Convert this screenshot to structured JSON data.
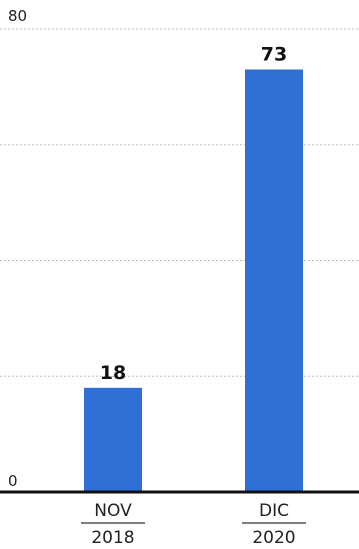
{
  "chart_data": {
    "type": "bar",
    "categories": [
      {
        "top": "NOV",
        "bottom": "2018"
      },
      {
        "top": "DIC",
        "bottom": "2020"
      }
    ],
    "values": [
      18,
      73
    ],
    "data_labels": [
      "18",
      "73"
    ],
    "ylim": [
      0,
      80
    ],
    "y_ticks": [
      0,
      80
    ],
    "y_tick_labels": [
      "0",
      "80"
    ],
    "gridlines": [
      20,
      40,
      60,
      80
    ],
    "grid": true,
    "legend": "none",
    "title": "",
    "xlabel": "",
    "ylabel": "",
    "colors": {
      "bar": "#2f6fd6",
      "axis": "#111111",
      "grid": "#bdbdbd",
      "divider": "#333333"
    }
  }
}
